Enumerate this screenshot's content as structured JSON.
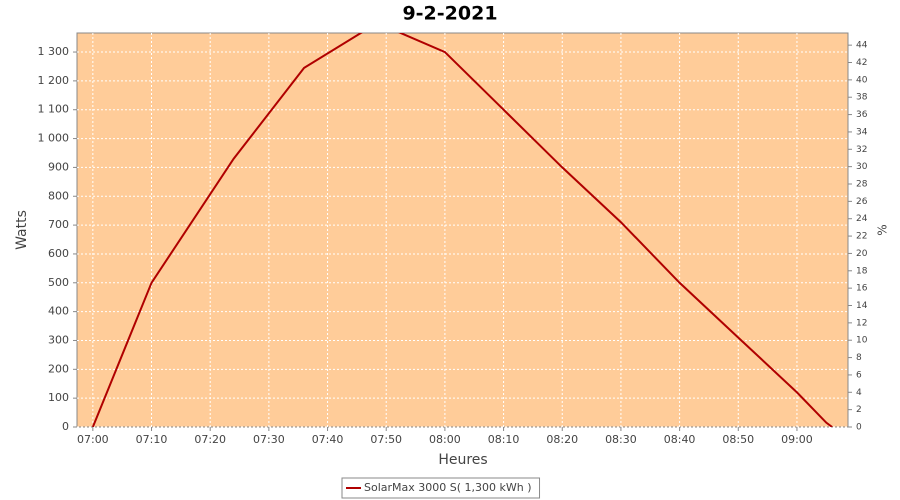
{
  "chart_data": {
    "type": "line",
    "title": "9-2-2021",
    "x_label": "Heures",
    "y_label": "Watts",
    "y2_label": "%",
    "x": [
      420,
      430,
      444,
      456,
      466,
      472,
      480,
      490,
      500,
      510,
      520,
      530,
      540,
      545,
      546
    ],
    "series": [
      {
        "name": "SolarMax 3000 S( 1,300 kWh )",
        "color": "#b00000",
        "values": [
          0,
          500,
          930,
          1245,
          1370,
          1370,
          1300,
          1100,
          900,
          710,
          500,
          310,
          120,
          15,
          0
        ]
      }
    ],
    "xlim": [
      417.3,
      548.7
    ],
    "xticks": [
      {
        "value": 420,
        "label": "07:00"
      },
      {
        "value": 430,
        "label": "07:10"
      },
      {
        "value": 440,
        "label": "07:20"
      },
      {
        "value": 450,
        "label": "07:30"
      },
      {
        "value": 460,
        "label": "07:40"
      },
      {
        "value": 470,
        "label": "07:50"
      },
      {
        "value": 480,
        "label": "08:00"
      },
      {
        "value": 490,
        "label": "08:10"
      },
      {
        "value": 500,
        "label": "08:20"
      },
      {
        "value": 510,
        "label": "08:30"
      },
      {
        "value": 520,
        "label": "08:40"
      },
      {
        "value": 530,
        "label": "08:50"
      },
      {
        "value": 540,
        "label": "09:00"
      }
    ],
    "ylim": [
      0,
      1366
    ],
    "yticks": [
      0,
      100,
      200,
      300,
      400,
      500,
      600,
      700,
      800,
      900,
      {
        "value": 1000,
        "label": "1 000"
      },
      {
        "value": 1100,
        "label": "1 100"
      },
      {
        "value": 1200,
        "label": "1 200"
      },
      {
        "value": 1300,
        "label": "1 300"
      }
    ],
    "y2lim": [
      0,
      45.4
    ],
    "y2ticks": [
      0,
      2,
      4,
      6,
      8,
      10,
      12,
      14,
      16,
      18,
      20,
      22,
      24,
      26,
      28,
      30,
      32,
      34,
      36,
      38,
      40,
      42,
      44
    ],
    "grid": true,
    "background": "#ffcc99",
    "legend": "bottom"
  }
}
